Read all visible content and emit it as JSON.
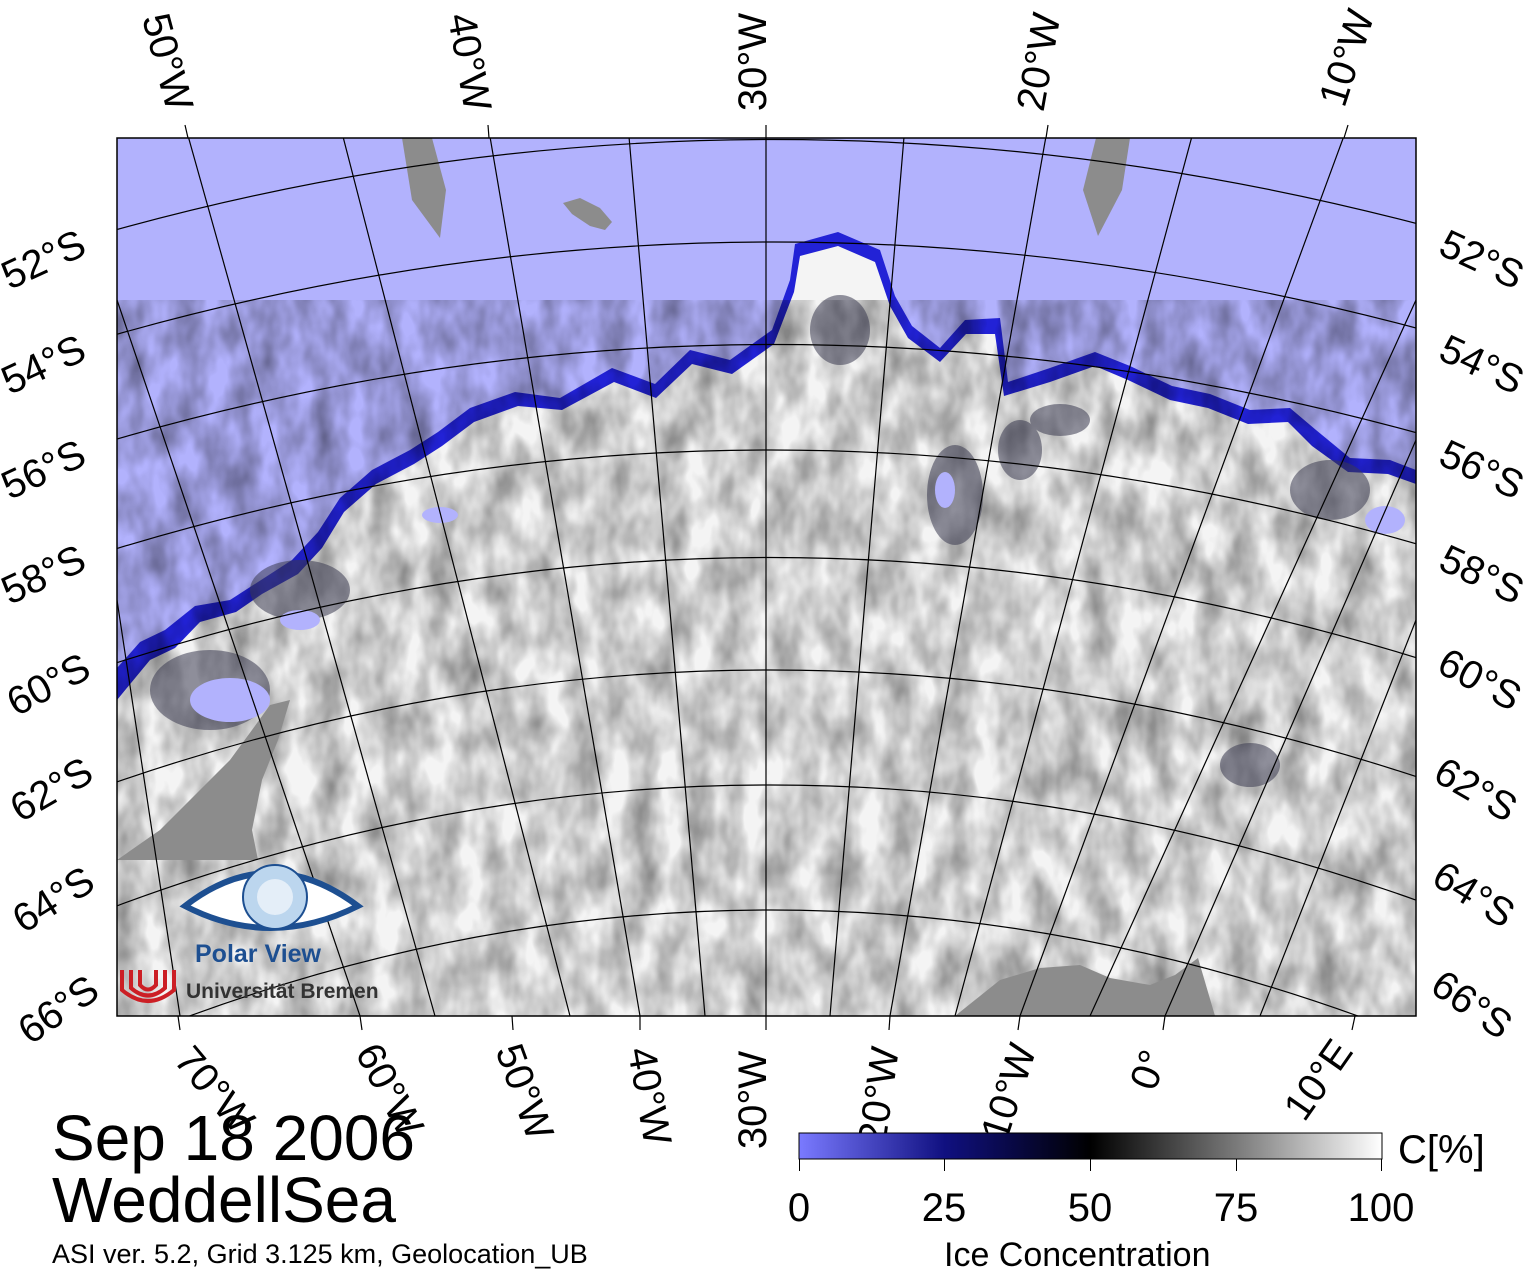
{
  "map": {
    "title_date": "Sep 18 2006",
    "region": "WeddellSea",
    "metadata": "ASI ver. 5.2,  Grid 3.125 km, Geolocation_UB",
    "colors": {
      "open_water": "#b2b2fd",
      "land": "#8c8c8c",
      "ice_full": "#ffffff",
      "ice_edge": "#1a1acf"
    },
    "top_meridian_labels": [
      "50°W",
      "40°W",
      "30°W",
      "20°W",
      "10°W"
    ],
    "bottom_meridian_labels": [
      "70°W",
      "60°W",
      "50°W",
      "40°W",
      "30°W",
      "20°W",
      "10°W",
      "0°",
      "10°E"
    ],
    "left_parallel_labels": [
      "52°S",
      "54°S",
      "56°S",
      "58°S",
      "60°S",
      "62°S",
      "64°S",
      "66°S"
    ],
    "right_parallel_labels": [
      "52°S",
      "54°S",
      "56°S",
      "58°S",
      "60°S",
      "62°S",
      "64°S",
      "66°S"
    ]
  },
  "colorbar": {
    "unit": "C[%]",
    "title": "Ice Concentration",
    "tick_labels": [
      "0",
      "25",
      "50",
      "75",
      "100"
    ],
    "stops": [
      {
        "value": 0,
        "color": "#7a7aff"
      },
      {
        "value": 25,
        "color": "#101080"
      },
      {
        "value": 50,
        "color": "#000000"
      },
      {
        "value": 75,
        "color": "#7a7a7a"
      },
      {
        "value": 100,
        "color": "#ffffff"
      }
    ]
  },
  "logo": {
    "product": "Polar View",
    "institution": "Universität Bremen"
  }
}
